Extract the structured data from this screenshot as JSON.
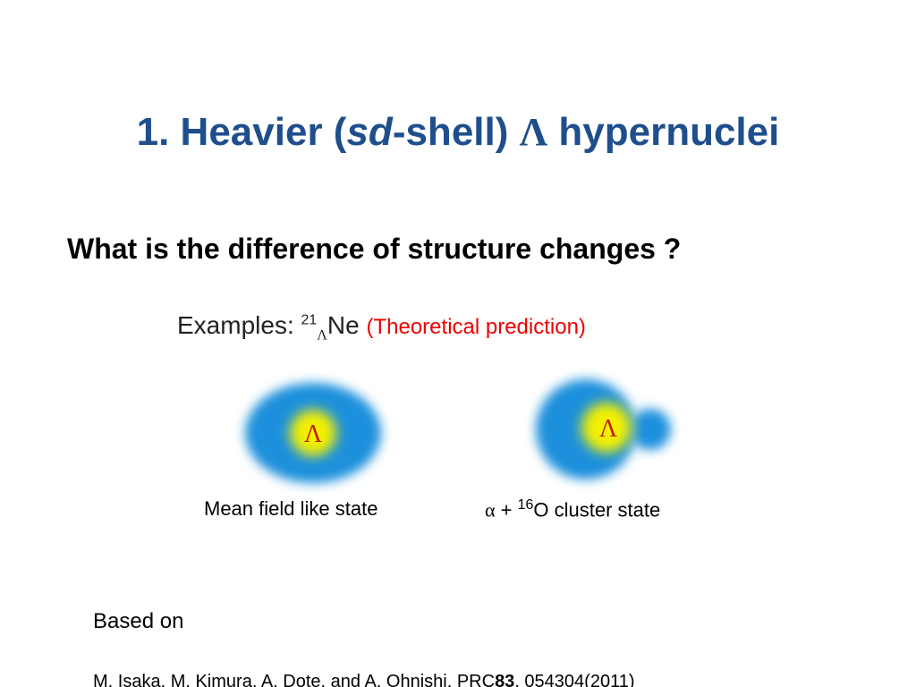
{
  "title": {
    "prefix": "1. Heavier (",
    "italic": "sd",
    "middle": "-shell) ",
    "symbol": "Λ",
    "suffix": " hypernuclei"
  },
  "subtitle": "What is the difference of structure changes ?",
  "examples": {
    "label": "Examples: ",
    "mass": "21",
    "sub": "Λ",
    "element": "Ne",
    "note": "(Theoretical prediction)"
  },
  "diagrams": [
    {
      "particle": "Λ",
      "caption": "Mean field like state"
    },
    {
      "particle": "Λ",
      "caption": {
        "alpha": "α",
        "plus": " + ",
        "mass": "16",
        "rest": "O cluster state"
      }
    }
  ],
  "reference": {
    "intro": "Based on",
    "authors": "M. Isaka, M. Kimura, A. Dote, and A. Ohnishi, PRC",
    "volume": "83",
    "pages": ", 054304(2011)"
  }
}
